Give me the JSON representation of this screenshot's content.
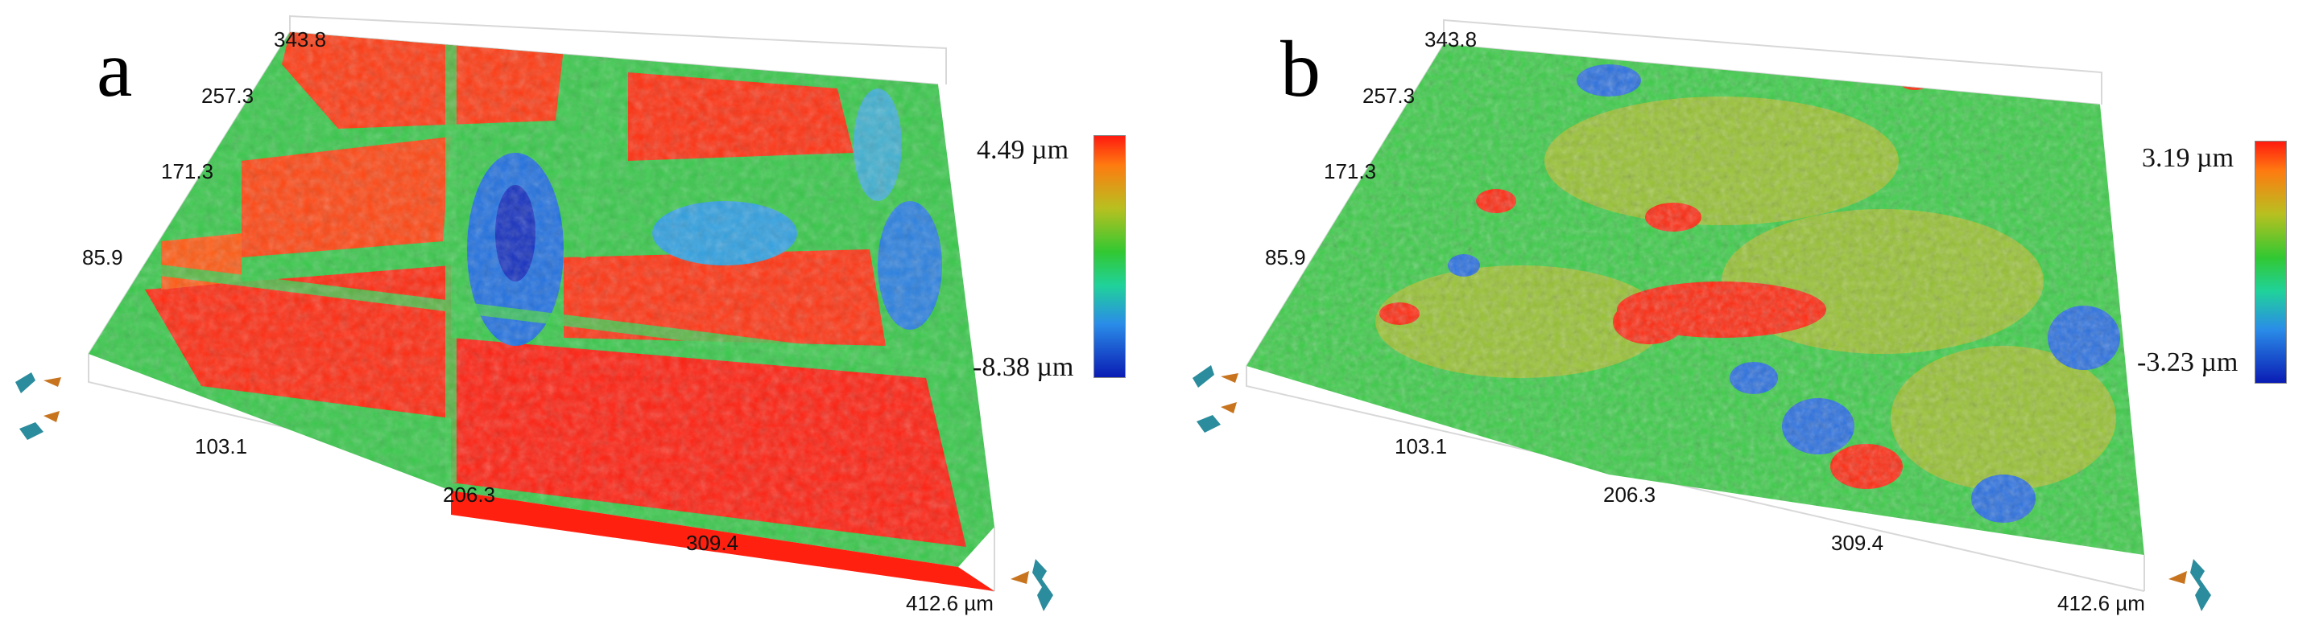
{
  "panels": [
    {
      "id": "a",
      "letter": "a",
      "y_ticks": [
        "343.8",
        "257.3",
        "171.3",
        "85.9"
      ],
      "x_ticks": [
        "103.1",
        "206.3",
        "309.4",
        "412.6 µm"
      ],
      "colorbar": {
        "max": "4.49 µm",
        "min": "-8.38 µm"
      }
    },
    {
      "id": "b",
      "letter": "b",
      "y_ticks": [
        "343.8",
        "257.3",
        "171.3",
        "85.9"
      ],
      "x_ticks": [
        "103.1",
        "206.3",
        "309.4",
        "412.6 µm"
      ],
      "colorbar": {
        "max": "3.19 µm",
        "min": "-3.23 µm"
      }
    }
  ],
  "colors": {
    "high": "#ff1a10",
    "mid": "#32c832",
    "low": "#0a1cb4",
    "nav_orange": "#c8741e",
    "nav_teal": "#2a8c9c"
  },
  "icons": [
    "rotate-left-icon",
    "rotate-right-icon"
  ]
}
